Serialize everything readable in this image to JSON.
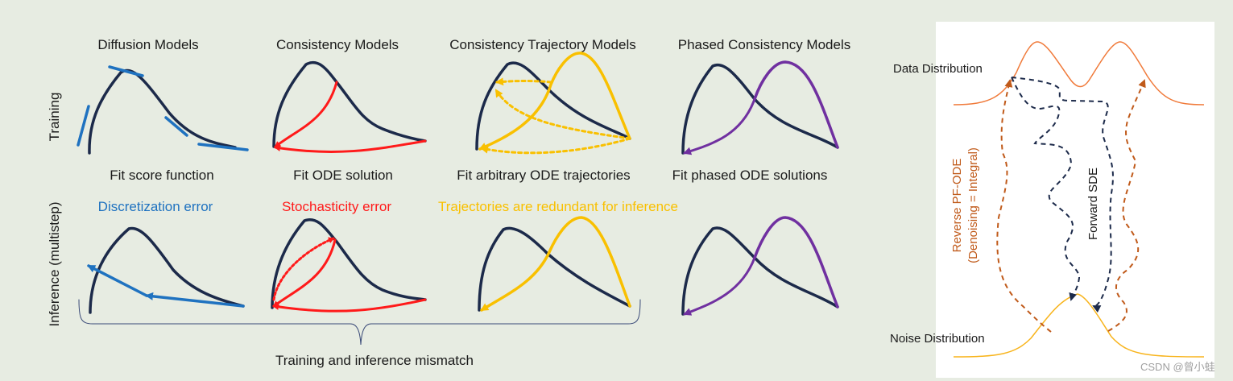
{
  "colors": {
    "background": "#e7ece2",
    "curve": "#1c2a4a",
    "blue": "#1f72c0",
    "red": "#ff1a1a",
    "yellow": "#f9c000",
    "purple": "#7030a0",
    "data_dist": "#f07a3a",
    "noise_dist": "#f8b41c",
    "pf_ode": "#c05a1a"
  },
  "row_labels": {
    "training": "Training",
    "inference": "Inference (multistep)"
  },
  "columns": [
    {
      "title": "Diffusion Models",
      "training_caption": "Fit score function",
      "inference_issue": "Discretization error"
    },
    {
      "title": "Consistency Models",
      "training_caption": "Fit ODE solution",
      "inference_issue": "Stochasticity error"
    },
    {
      "title": "Consistency Trajectory Models",
      "training_caption": "Fit arbitrary ODE trajectories",
      "inference_issue": "Trajectories are redundant for inference"
    },
    {
      "title": "Phased Consistency Models",
      "training_caption": "Fit phased ODE solutions",
      "inference_issue": ""
    }
  ],
  "brace_label": "Training and inference mismatch",
  "right_panel": {
    "data_distribution": "Data Distribution",
    "noise_distribution": "Noise Distribution",
    "reverse_line1": "Reverse PF-ODE",
    "reverse_line2": "(Denoising = Integral)",
    "forward": "Forward SDE"
  },
  "watermark": "CSDN @曾小蛙"
}
